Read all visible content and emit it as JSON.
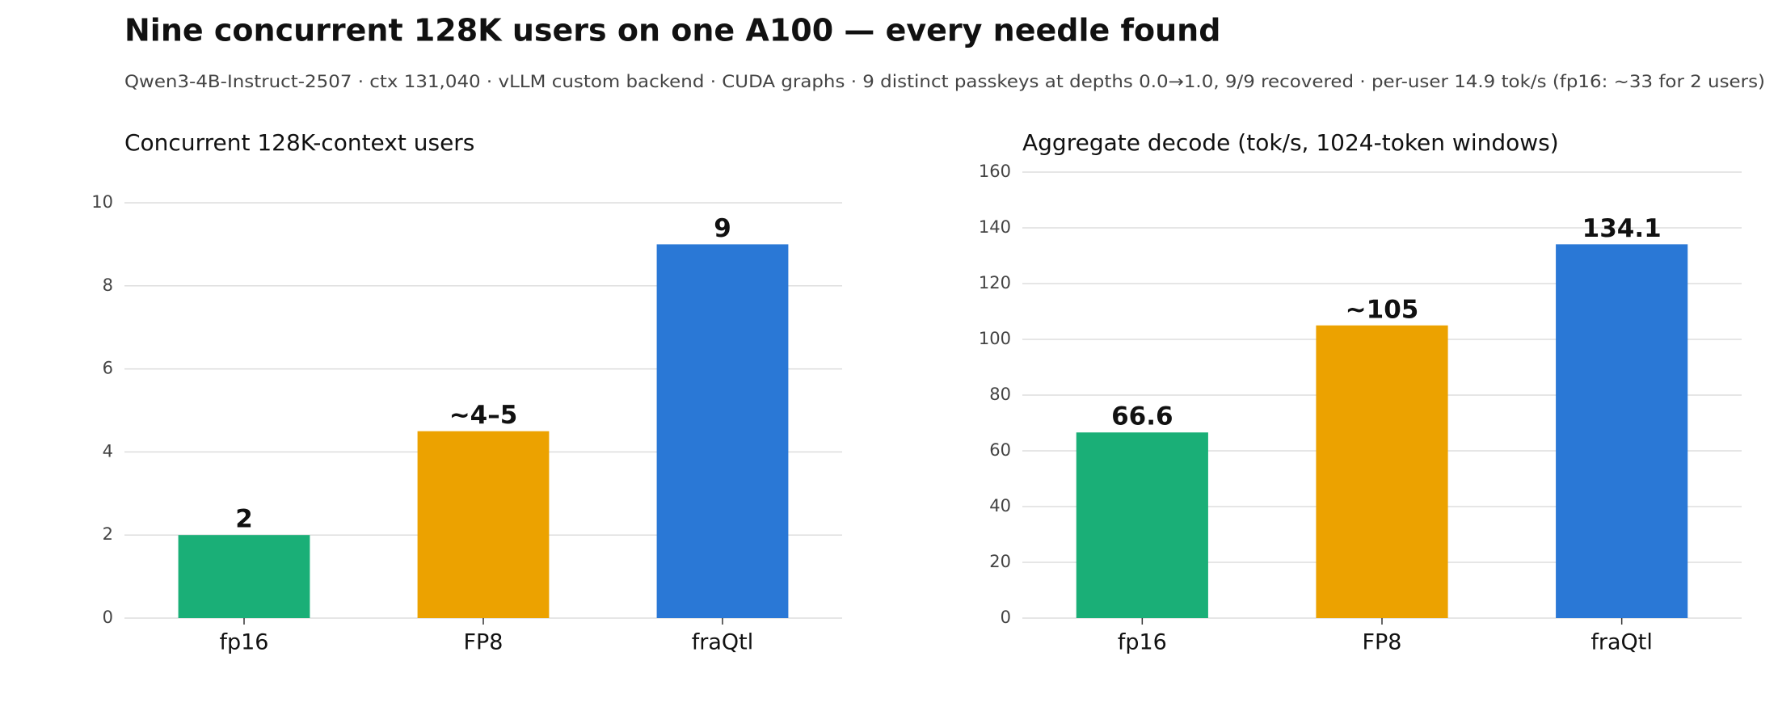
{
  "title": "Nine concurrent 128K users on one A100 — every needle found",
  "subtitle": "Qwen3-4B-Instruct-2507 · ctx 131,040 · vLLM custom backend · CUDA graphs · 9 distinct passkeys at depths 0.0→1.0, 9/9 recovered · per-user 14.9 tok/s (fp16: ~33 for 2 users)",
  "chart_data": [
    {
      "type": "bar",
      "title": "Concurrent 128K-context users",
      "categories": [
        "fp16",
        "FP8",
        "fraQtl"
      ],
      "values": [
        2,
        4.5,
        9
      ],
      "value_labels": [
        "2",
        "~4–5",
        "9"
      ],
      "colors": [
        "#1aaf77",
        "#eca200",
        "#2a78d6"
      ],
      "ylim": [
        0,
        10
      ],
      "yticks": [
        0,
        2,
        4,
        6,
        8,
        10
      ],
      "grid": true
    },
    {
      "type": "bar",
      "title": "Aggregate decode (tok/s, 1024-token windows)",
      "categories": [
        "fp16",
        "FP8",
        "fraQtl"
      ],
      "values": [
        66.6,
        105,
        134.1
      ],
      "value_labels": [
        "66.6",
        "~105",
        "134.1"
      ],
      "colors": [
        "#1aaf77",
        "#eca200",
        "#2a78d6"
      ],
      "ylim": [
        0,
        160
      ],
      "yticks": [
        0,
        20,
        40,
        60,
        80,
        100,
        120,
        140,
        160
      ],
      "grid": true
    }
  ]
}
